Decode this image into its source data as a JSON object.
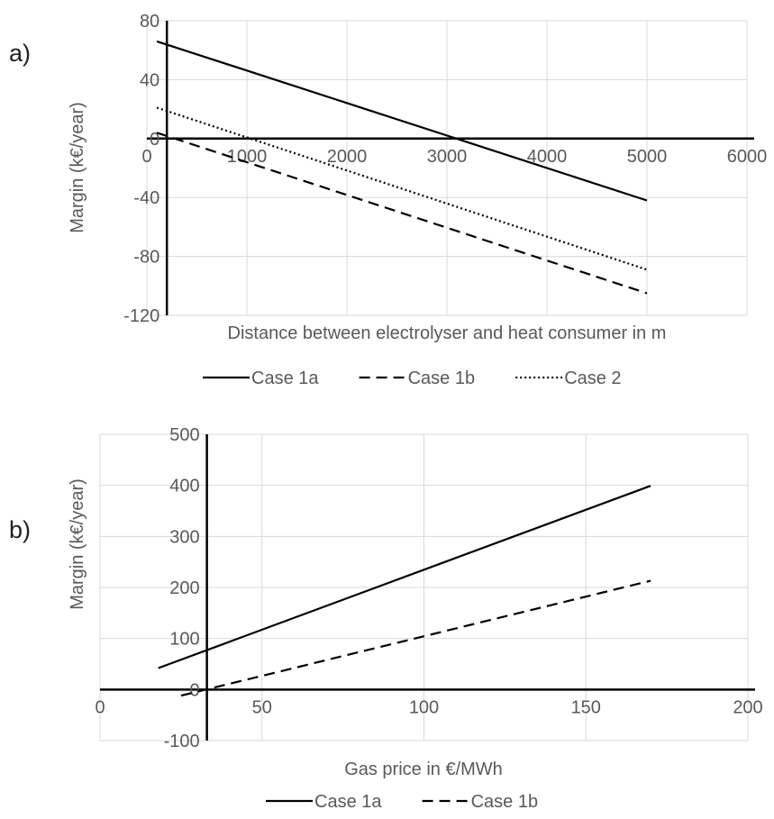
{
  "chart_data": [
    {
      "panel_label": "a)",
      "type": "line",
      "xlabel": "Distance between electrolyser and heat consumer in m",
      "ylabel": "Margin (k€/year)",
      "xlim": [
        0,
        6000
      ],
      "ylim": [
        -120,
        80
      ],
      "xticks": [
        0,
        1000,
        2000,
        3000,
        4000,
        5000,
        6000
      ],
      "yticks": [
        -120,
        -80,
        -40,
        0,
        40,
        80
      ],
      "grid": true,
      "legend_position": "bottom",
      "series": [
        {
          "name": "Case 1a",
          "style": "solid",
          "color": "#000000",
          "x": [
            100,
            5000
          ],
          "y": [
            66,
            -42
          ]
        },
        {
          "name": "Case 1b",
          "style": "dashed",
          "color": "#000000",
          "x": [
            100,
            5000
          ],
          "y": [
            4,
            -105
          ]
        },
        {
          "name": "Case 2",
          "style": "dotted",
          "color": "#000000",
          "x": [
            100,
            5000
          ],
          "y": [
            21,
            -89
          ]
        }
      ]
    },
    {
      "panel_label": "b)",
      "type": "line",
      "xlabel": "Gas price in €/MWh",
      "ylabel": "Margin (k€/year)",
      "xlim": [
        0,
        200
      ],
      "ylim": [
        -100,
        500
      ],
      "xticks": [
        0,
        50,
        100,
        150,
        200
      ],
      "yticks": [
        -100,
        0,
        100,
        200,
        300,
        400,
        500
      ],
      "grid": true,
      "legend_position": "bottom",
      "series": [
        {
          "name": "Case 1a",
          "style": "solid",
          "color": "#000000",
          "x": [
            18,
            170
          ],
          "y": [
            42,
            399
          ]
        },
        {
          "name": "Case 1b",
          "style": "dashed",
          "color": "#000000",
          "x": [
            25,
            170
          ],
          "y": [
            -12,
            213
          ]
        }
      ]
    }
  ]
}
